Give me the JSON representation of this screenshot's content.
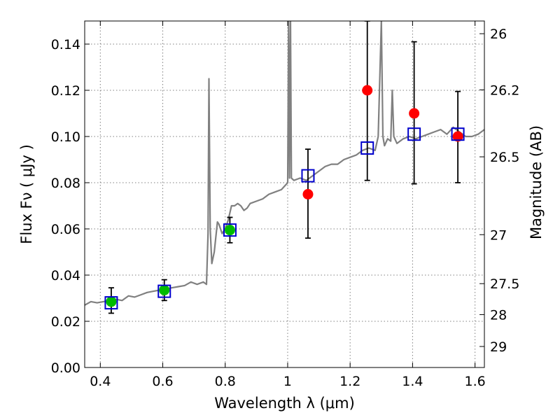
{
  "chart_data": {
    "type": "scatter",
    "xlabel": "Wavelength  λ (μm)",
    "ylabel": "Flux  Fν  ( μJy )",
    "y2label": "Magnitude (AB)",
    "xlim": [
      0.35,
      1.63
    ],
    "ylim": [
      0.0,
      0.15
    ],
    "grid": true,
    "x_ticks": [
      0.4,
      0.6,
      0.8,
      1.0,
      1.2,
      1.4,
      1.6
    ],
    "x_tick_labels": [
      "0.4",
      "0.6",
      "0.8",
      "1",
      "1.2",
      "1.4",
      "1.6"
    ],
    "y_ticks": [
      0.0,
      0.02,
      0.04,
      0.06,
      0.08,
      0.1,
      0.12,
      0.14
    ],
    "y_tick_labels": [
      "0.00",
      "0.02",
      "0.04",
      "0.06",
      "0.08",
      "0.10",
      "0.12",
      "0.14"
    ],
    "mag_ticks": [
      {
        "label": "26",
        "flux": 0.1445
      },
      {
        "label": "26.2",
        "flux": 0.1202
      },
      {
        "label": "26.5",
        "flux": 0.0912
      },
      {
        "label": "27",
        "flux": 0.0575
      },
      {
        "label": "27.5",
        "flux": 0.0363
      },
      {
        "label": "28",
        "flux": 0.0229
      },
      {
        "label": "29",
        "flux": 0.0091
      }
    ],
    "series": [
      {
        "type": "line",
        "color": "#808080",
        "x": [
          0.35,
          0.37,
          0.39,
          0.41,
          0.43,
          0.45,
          0.47,
          0.49,
          0.51,
          0.53,
          0.55,
          0.57,
          0.59,
          0.61,
          0.63,
          0.65,
          0.67,
          0.69,
          0.71,
          0.73,
          0.74,
          0.745,
          0.748,
          0.752,
          0.757,
          0.765,
          0.775,
          0.78,
          0.79,
          0.8,
          0.81,
          0.82,
          0.83,
          0.84,
          0.85,
          0.86,
          0.87,
          0.88,
          0.9,
          0.92,
          0.94,
          0.96,
          0.98,
          1.0,
          1.003,
          1.006,
          1.009,
          1.012,
          1.02,
          1.04,
          1.06,
          1.08,
          1.1,
          1.12,
          1.14,
          1.16,
          1.18,
          1.2,
          1.22,
          1.24,
          1.26,
          1.28,
          1.29,
          1.3,
          1.305,
          1.31,
          1.32,
          1.33,
          1.335,
          1.34,
          1.35,
          1.37,
          1.39,
          1.41,
          1.43,
          1.45,
          1.47,
          1.49,
          1.51,
          1.53,
          1.55,
          1.57,
          1.59,
          1.61,
          1.63
        ],
        "y": [
          0.027,
          0.0285,
          0.028,
          0.0285,
          0.029,
          0.0295,
          0.029,
          0.031,
          0.0305,
          0.0315,
          0.0325,
          0.033,
          0.0335,
          0.034,
          0.0345,
          0.035,
          0.0355,
          0.037,
          0.036,
          0.037,
          0.036,
          0.058,
          0.125,
          0.06,
          0.045,
          0.05,
          0.063,
          0.062,
          0.058,
          0.06,
          0.064,
          0.07,
          0.07,
          0.071,
          0.07,
          0.068,
          0.069,
          0.071,
          0.072,
          0.073,
          0.075,
          0.076,
          0.077,
          0.08,
          0.15,
          0.082,
          0.15,
          0.082,
          0.081,
          0.082,
          0.081,
          0.083,
          0.085,
          0.087,
          0.088,
          0.088,
          0.09,
          0.091,
          0.092,
          0.094,
          0.095,
          0.094,
          0.1,
          0.15,
          0.1,
          0.096,
          0.099,
          0.098,
          0.12,
          0.1,
          0.097,
          0.099,
          0.1,
          0.099,
          0.1,
          0.101,
          0.102,
          0.103,
          0.101,
          0.104,
          0.102,
          0.1,
          0.1,
          0.101,
          0.103
        ]
      },
      {
        "type": "points",
        "marker": "open-square",
        "color": "#0000cc",
        "x": [
          0.435,
          0.605,
          0.815,
          1.065,
          1.255,
          1.405,
          1.545
        ],
        "y": [
          0.028,
          0.033,
          0.0595,
          0.083,
          0.095,
          0.101,
          0.101
        ]
      },
      {
        "type": "points",
        "marker": "filled-circle",
        "color": "#00bb00",
        "x": [
          0.435,
          0.605,
          0.815
        ],
        "y": [
          0.0285,
          0.0335,
          0.0595
        ],
        "err_low": [
          0.0235,
          0.029,
          0.054
        ],
        "err_high": [
          0.0345,
          0.038,
          0.065
        ]
      },
      {
        "type": "points",
        "marker": "filled-circle",
        "color": "#ff0000",
        "x": [
          1.065,
          1.255,
          1.405,
          1.545
        ],
        "y": [
          0.075,
          0.12,
          0.11,
          0.1
        ],
        "err_low": [
          0.056,
          0.081,
          0.0795,
          0.08
        ],
        "err_high": [
          0.0945,
          0.15,
          0.141,
          0.1195
        ]
      }
    ]
  }
}
